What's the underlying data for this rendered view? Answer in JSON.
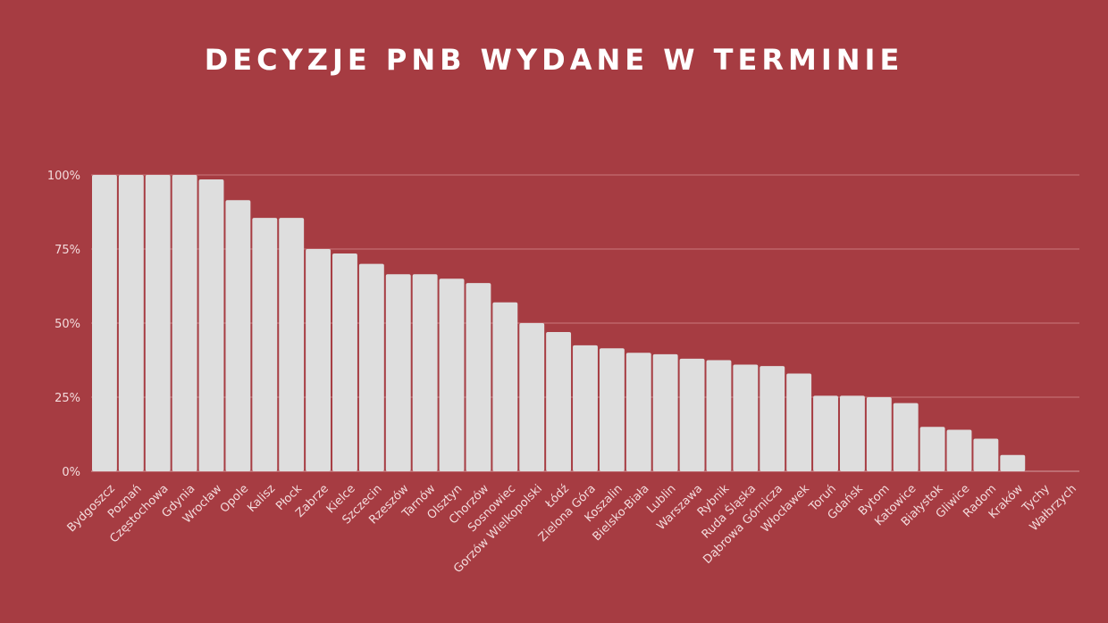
{
  "colors": {
    "background": "#a63c42",
    "bar": "#dedede",
    "text": "#ffffff"
  },
  "chart_data": {
    "type": "bar",
    "title": "DECYZJE PNB WYDANE W TERMINIE",
    "xlabel": "",
    "ylabel": "",
    "ylim": [
      0,
      100
    ],
    "yticks": [
      "0%",
      "25%",
      "50%",
      "75%",
      "100%"
    ],
    "grid": true,
    "categories": [
      "Bydgoszcz",
      "Poznań",
      "Częstochowa",
      "Gdynia",
      "Wrocław",
      "Opole",
      "Kalisz",
      "Płock",
      "Zabrze",
      "Kielce",
      "Szczecin",
      "Rzeszów",
      "Tarnów",
      "Olsztyn",
      "Chorzów",
      "Sosnowiec",
      "Gorzów Wielkopolski",
      "Łódź",
      "Zielona Góra",
      "Koszalin",
      "Bielsko-Biała",
      "Lublin",
      "Warszawa",
      "Rybnik",
      "Ruda Śląska",
      "Dąbrowa Górnicza",
      "Włocławek",
      "Toruń",
      "Gdańsk",
      "Bytom",
      "Katowice",
      "Białystok",
      "Gliwice",
      "Radom",
      "Kraków",
      "Tychy",
      "Wałbrzych"
    ],
    "values": [
      100,
      100,
      100,
      100,
      98.5,
      91.5,
      85.5,
      85.5,
      75,
      73.5,
      70,
      66.5,
      66.5,
      65,
      63.5,
      57,
      50,
      47,
      42.5,
      41.5,
      40,
      39.5,
      38,
      37.5,
      36,
      35.5,
      33,
      25.5,
      25.5,
      25,
      23,
      15,
      14,
      11,
      5.5,
      0,
      0
    ]
  }
}
